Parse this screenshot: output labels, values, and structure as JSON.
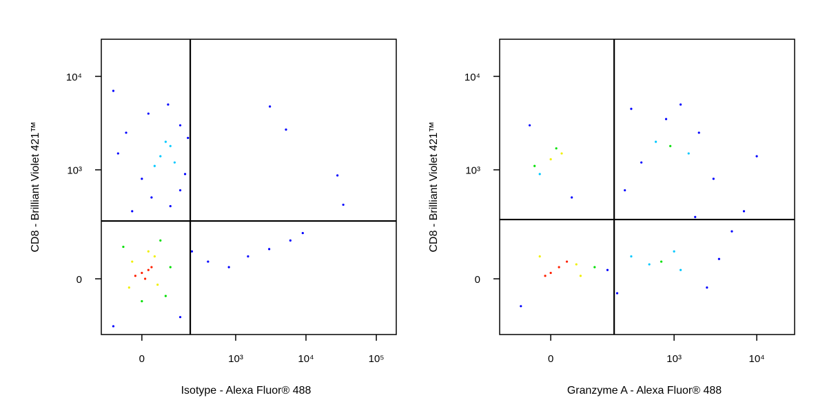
{
  "chart_data": [
    {
      "type": "scatter",
      "x_label": "Isotype - Alexa Fluor® 488",
      "y_label": "CD8 - Brilliant Violet 421™",
      "xscale": "arcsinh",
      "yscale": "arcsinh",
      "xlim": [
        -163,
        192000
      ],
      "ylim": [
        -254,
        24900
      ],
      "xticks": [
        0,
        {
          "value": 1000,
          "label": "10³"
        },
        {
          "value": 10000,
          "label": "10⁴"
        },
        {
          "value": 100000,
          "label": "10⁵"
        }
      ],
      "yticks": [
        0,
        {
          "value": 1000,
          "label": "10³"
        },
        {
          "value": 10000,
          "label": "10⁴"
        }
      ],
      "gate_x": 217,
      "gate_y": 269,
      "series": [
        {
          "color": "#0000ff",
          "x": [
            -50,
            150,
            0,
            180,
            -80,
            200,
            30,
            100,
            -30,
            150,
            20,
            90,
            -100,
            400,
            800,
            1500,
            3000,
            6000,
            9000,
            3070,
            5200,
            28000,
            33900,
            -100,
            150,
            230
          ],
          "y": [
            2500,
            3000,
            800,
            900,
            1500,
            2200,
            500,
            400,
            350,
            600,
            4000,
            5000,
            7000,
            60,
            40,
            80,
            110,
            150,
            190,
            4760,
            2700,
            870,
            415,
            -200,
            -150,
            100
          ]
        },
        {
          "color": "#00c8ff",
          "x": [
            60,
            100,
            40,
            120,
            80
          ],
          "y": [
            1400,
            1800,
            1100,
            1200,
            2000
          ]
        },
        {
          "color": "#00e000",
          "x": [
            60,
            -60,
            80,
            0,
            100
          ],
          "y": [
            150,
            120,
            -60,
            -80,
            40
          ]
        },
        {
          "color": "#f0f000",
          "x": [
            -30,
            40,
            50,
            -40,
            20
          ],
          "y": [
            60,
            80,
            -20,
            -30,
            100
          ]
        },
        {
          "color": "#ff2000",
          "x": [
            0,
            20,
            -20,
            10,
            30
          ],
          "y": [
            20,
            30,
            10,
            0,
            40
          ]
        }
      ]
    },
    {
      "type": "scatter",
      "x_label": "Granzyme A - Alexa Fluor® 488",
      "y_label": "CD8 - Brilliant Violet 421™",
      "xscale": "arcsinh",
      "yscale": "arcsinh",
      "xlim": [
        -126,
        28700
      ],
      "ylim": [
        -254,
        24900
      ],
      "xticks": [
        0,
        {
          "value": 1000,
          "label": "10³"
        },
        {
          "value": 10000,
          "label": "10⁴"
        }
      ],
      "yticks": [
        0,
        {
          "value": 1000,
          "label": "10³"
        },
        {
          "value": 10000,
          "label": "10⁴"
        }
      ],
      "gate_x": 183,
      "gate_y": 280,
      "series": [
        {
          "color": "#0000ff",
          "x": [
            400,
            2000,
            3000,
            250,
            1800,
            3500,
            150,
            -60,
            200,
            2500,
            5000,
            800,
            300,
            1200,
            7000,
            10000,
            -40,
            40
          ],
          "y": [
            1200,
            2500,
            800,
            600,
            300,
            70,
            30,
            -100,
            -50,
            -30,
            200,
            3500,
            4500,
            5000,
            350,
            1400,
            3000,
            500
          ]
        },
        {
          "color": "#00c8ff",
          "x": [
            500,
            1200,
            600,
            1500,
            -20,
            300,
            1000
          ],
          "y": [
            50,
            30,
            2000,
            1500,
            900,
            80,
            100
          ]
        },
        {
          "color": "#00e000",
          "x": [
            100,
            -30,
            10,
            900,
            700
          ],
          "y": [
            40,
            1100,
            1700,
            1800,
            60
          ]
        },
        {
          "color": "#f0f000",
          "x": [
            50,
            -20,
            60,
            0,
            20
          ],
          "y": [
            50,
            80,
            10,
            1300,
            1500
          ]
        },
        {
          "color": "#ff2000",
          "x": [
            0,
            15,
            -10,
            30
          ],
          "y": [
            20,
            40,
            10,
            60
          ]
        }
      ]
    }
  ]
}
